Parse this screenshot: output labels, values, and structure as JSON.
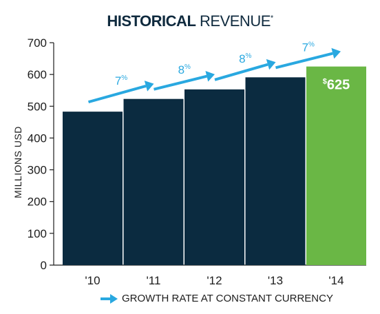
{
  "title": {
    "bold": "HISTORICAL",
    "regular": "REVENUE",
    "mark": "*"
  },
  "legend": {
    "label": "GROWTH RATE AT CONSTANT CURRENCY"
  },
  "colors": {
    "bar": "#0b2b40",
    "highlight": "#6ab745",
    "arrow": "#29a8e0",
    "axis": "#1c1c1c"
  },
  "chart_data": {
    "type": "bar",
    "title": "HISTORICAL REVENUE*",
    "ylabel": "MILLIONS USD",
    "xlabel": "",
    "ylim": [
      0,
      700
    ],
    "yticks": [
      0,
      100,
      200,
      300,
      400,
      500,
      600,
      700
    ],
    "categories": [
      "'10",
      "'11",
      "'12",
      "'13",
      "'14"
    ],
    "values": [
      483,
      523,
      553,
      591,
      625
    ],
    "highlight_index": 4,
    "value_label": {
      "index": 4,
      "prefix": "$",
      "text": "625"
    },
    "growth_rates": [
      {
        "label": "7",
        "unit": "%"
      },
      {
        "label": "8",
        "unit": "%"
      },
      {
        "label": "8",
        "unit": "%"
      },
      {
        "label": "7",
        "unit": "%"
      }
    ],
    "grid": false
  }
}
